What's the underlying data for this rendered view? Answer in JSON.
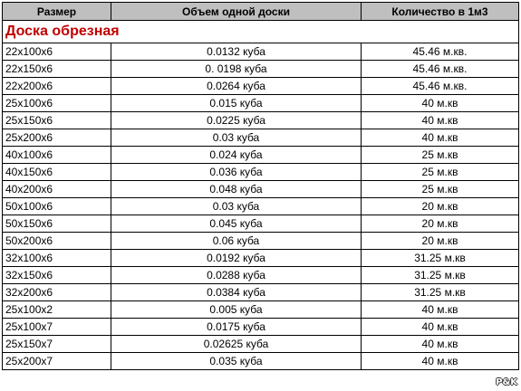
{
  "table": {
    "headers": [
      "Размер",
      "Объем одной доски",
      "Количество в 1м3"
    ],
    "section_title": "Доска обрезная",
    "rows": [
      {
        "size": "22x100x6",
        "volume": "0.0132 куба",
        "quantity": "45.46 м.кв."
      },
      {
        "size": "22x150x6",
        "volume": "0. 0198 куба",
        "quantity": "45.46 м.кв."
      },
      {
        "size": "22x200x6",
        "volume": "0.0264 куба",
        "quantity": "45.46 м.кв."
      },
      {
        "size": "25x100x6",
        "volume": "0.015 куба",
        "quantity": "40 м.кв"
      },
      {
        "size": "25x150x6",
        "volume": "0.0225 куба",
        "quantity": "40 м.кв"
      },
      {
        "size": "25x200x6",
        "volume": "0.03 куба",
        "quantity": "40 м.кв"
      },
      {
        "size": "40x100x6",
        "volume": "0.024 куба",
        "quantity": "25 м.кв"
      },
      {
        "size": "40x150x6",
        "volume": "0.036 куба",
        "quantity": "25 м.кв"
      },
      {
        "size": "40x200x6",
        "volume": "0.048 куба",
        "quantity": "25 м.кв"
      },
      {
        "size": "50x100x6",
        "volume": "0.03 куба",
        "quantity": "20 м.кв"
      },
      {
        "size": "50x150x6",
        "volume": "0.045 куба",
        "quantity": "20 м.кв"
      },
      {
        "size": "50x200x6",
        "volume": "0.06 куба",
        "quantity": "20 м.кв"
      },
      {
        "size": "32x100x6",
        "volume": "0.0192 куба",
        "quantity": "31.25 м.кв"
      },
      {
        "size": "32x150x6",
        "volume": "0.0288 куба",
        "quantity": "31.25 м.кв"
      },
      {
        "size": "32x200x6",
        "volume": "0.0384 куба",
        "quantity": "31.25 м.кв"
      },
      {
        "size": "25x100x2",
        "volume": "0.005 куба",
        "quantity": "40 м.кв"
      },
      {
        "size": "25x100x7",
        "volume": "0.0175 куба",
        "quantity": "40 м.кв"
      },
      {
        "size": "25x150x7",
        "volume": "0.02625 куба",
        "quantity": "40 м.кв"
      },
      {
        "size": "25x200x7",
        "volume": "0.035 куба",
        "quantity": "40 м.кв"
      }
    ]
  },
  "watermark": "P&K",
  "colors": {
    "header_bg": "#bfbfbf",
    "section_text": "#c00000",
    "border": "#000000"
  }
}
